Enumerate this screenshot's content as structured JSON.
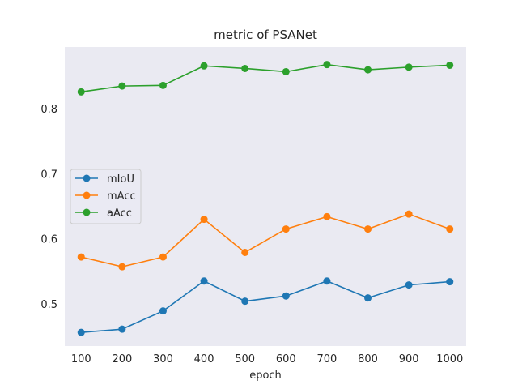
{
  "chart_data": {
    "type": "line",
    "title": "metric of PSANet",
    "xlabel": "epoch",
    "ylabel": "",
    "x": [
      100,
      200,
      300,
      400,
      500,
      600,
      700,
      800,
      900,
      1000
    ],
    "x_tick_labels": [
      "100",
      "200",
      "300",
      "400",
      "500",
      "600",
      "700",
      "800",
      "900",
      "1000"
    ],
    "y_ticks": [
      0.5,
      0.6,
      0.7,
      0.8
    ],
    "y_tick_labels": [
      "0.5",
      "0.6",
      "0.7",
      "0.8"
    ],
    "xlim": [
      60,
      1040
    ],
    "ylim": [
      0.435,
      0.895
    ],
    "grid": false,
    "background": "#eaeaf2",
    "legend_position": "center-left",
    "series": [
      {
        "name": "mIoU",
        "color": "#1f77b4",
        "values": [
          0.456,
          0.461,
          0.489,
          0.535,
          0.504,
          0.512,
          0.535,
          0.509,
          0.529,
          0.534
        ]
      },
      {
        "name": "mAcc",
        "color": "#ff7f0e",
        "values": [
          0.572,
          0.557,
          0.572,
          0.63,
          0.579,
          0.615,
          0.634,
          0.615,
          0.638,
          0.615
        ]
      },
      {
        "name": "aAcc",
        "color": "#2ca02c",
        "values": [
          0.826,
          0.835,
          0.836,
          0.866,
          0.862,
          0.857,
          0.868,
          0.86,
          0.864,
          0.867
        ]
      }
    ]
  }
}
